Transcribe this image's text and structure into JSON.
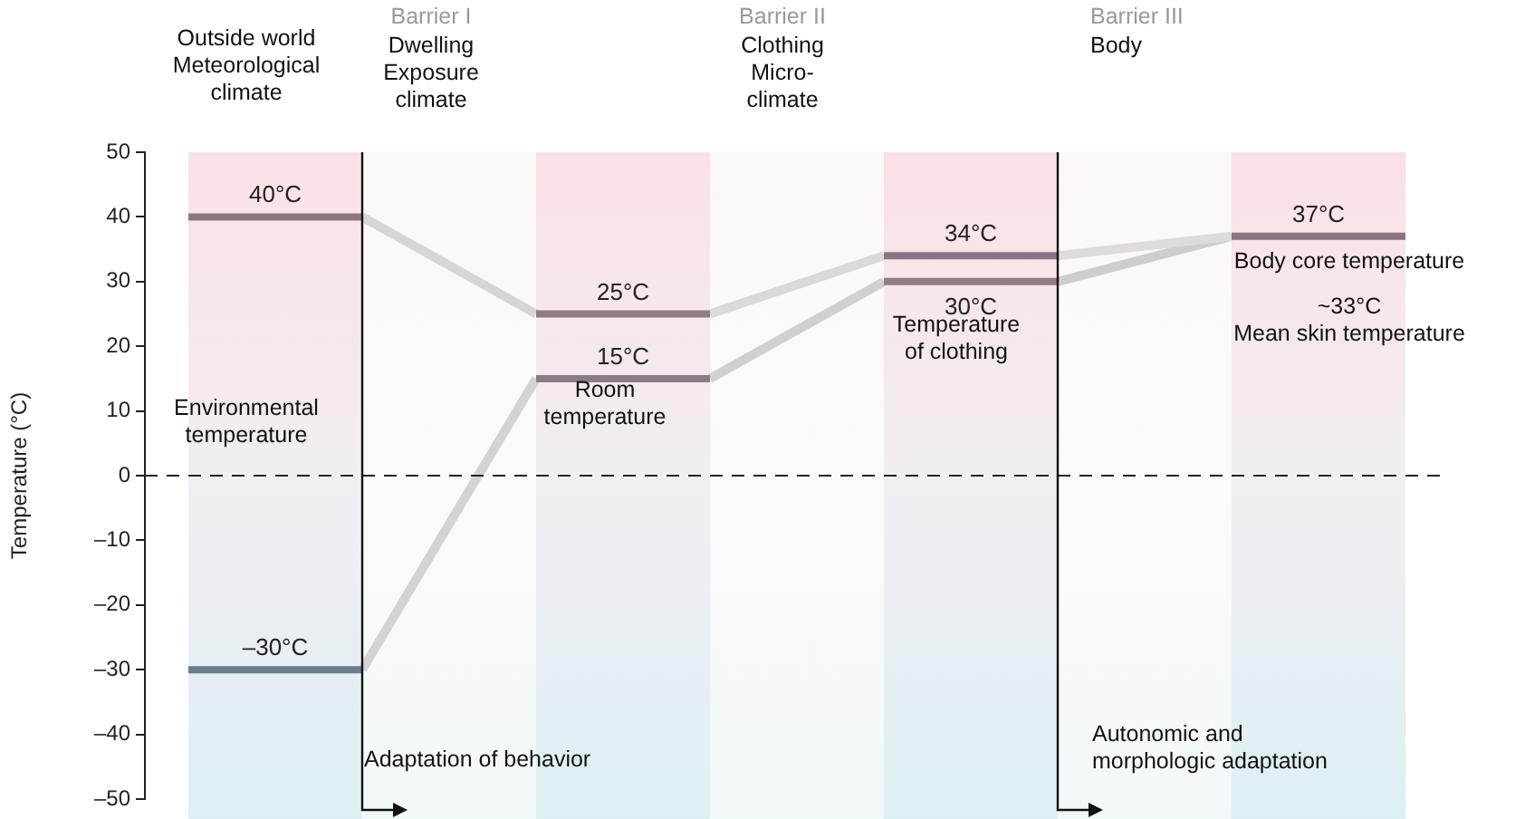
{
  "chart_data": {
    "type": "line",
    "ylabel": "Temperature (°C)",
    "categories": [
      null,
      null,
      null,
      null,
      null,
      null,
      null,
      null,
      null,
      null,
      null,
      null,
      null,
      null,
      null
    ],
    "series": [
      {
        "color": "#d6d6d6",
        "values": [
          null,
          null,
          40,
          null,
          25,
          null,
          null,
          null,
          null,
          null,
          null,
          null,
          null,
          null,
          null
        ]
      },
      {
        "color": "#d3d3d3",
        "values": [
          null,
          null,
          -30,
          null,
          15,
          null,
          null,
          null,
          null,
          null,
          null,
          null,
          null,
          null,
          null
        ]
      },
      {
        "color": "#d9d9d9",
        "values": [
          null,
          null,
          null,
          null,
          null,
          null,
          25,
          null,
          34,
          null,
          null,
          null,
          null,
          null,
          null
        ]
      },
      {
        "color": "#d0d0d0",
        "values": [
          null,
          null,
          null,
          null,
          null,
          null,
          15,
          null,
          30,
          null,
          null,
          null,
          null,
          null,
          null
        ]
      },
      {
        "color": "#dcdcdc",
        "values": [
          null,
          null,
          null,
          null,
          null,
          null,
          null,
          null,
          null,
          null,
          34,
          null,
          37,
          null,
          null
        ]
      },
      {
        "color": "#cdcdcd",
        "values": [
          null,
          null,
          null,
          null,
          null,
          null,
          null,
          null,
          null,
          null,
          30,
          null,
          37,
          null,
          null
        ]
      },
      {
        "color": "#8c7884",
        "values": [
          40,
          40,
          40,
          null,
          null,
          null,
          null,
          null,
          null,
          null,
          null,
          null,
          null,
          null,
          null
        ],
        "value_labels": [
          null,
          "40°C",
          null,
          null,
          null,
          null,
          null,
          null,
          null,
          null,
          null,
          null,
          null,
          null,
          null
        ]
      },
      {
        "color": "#6c7c8c",
        "values": [
          -30,
          -30,
          -30,
          null,
          null,
          null,
          null,
          null,
          null,
          null,
          null,
          null,
          null,
          null,
          null
        ],
        "value_labels": [
          null,
          "–30°C",
          null,
          null,
          null,
          null,
          null,
          null,
          null,
          null,
          null,
          null,
          null,
          null,
          null
        ]
      },
      {
        "color": "#907a86",
        "values": [
          null,
          null,
          null,
          null,
          25,
          25,
          25,
          null,
          null,
          null,
          null,
          null,
          null,
          null,
          null
        ],
        "value_labels": [
          null,
          null,
          null,
          null,
          null,
          "25°C",
          null,
          null,
          null,
          null,
          null,
          null,
          null,
          null,
          null
        ]
      },
      {
        "color": "#867c8a",
        "values": [
          null,
          null,
          null,
          null,
          15,
          15,
          15,
          null,
          null,
          null,
          null,
          null,
          null,
          null,
          null
        ],
        "value_labels": [
          null,
          null,
          null,
          null,
          null,
          "15°C",
          null,
          null,
          null,
          null,
          null,
          null,
          null,
          null,
          null
        ]
      },
      {
        "color": "#8a7682",
        "values": [
          null,
          null,
          null,
          null,
          null,
          null,
          null,
          null,
          34,
          34,
          34,
          null,
          null,
          null,
          null
        ],
        "value_labels": [
          null,
          null,
          null,
          null,
          null,
          null,
          null,
          null,
          null,
          "34°C",
          null,
          null,
          null,
          null,
          null
        ]
      },
      {
        "color": "#927c88",
        "values": [
          null,
          null,
          null,
          null,
          null,
          null,
          null,
          null,
          30,
          30,
          30,
          null,
          null,
          null,
          null
        ],
        "value_labels": [
          null,
          null,
          null,
          null,
          null,
          null,
          null,
          null,
          null,
          "30°C",
          null,
          null,
          null,
          null,
          null
        ]
      },
      {
        "color": "#887480",
        "values": [
          null,
          null,
          null,
          null,
          null,
          null,
          null,
          null,
          null,
          null,
          null,
          null,
          37,
          37,
          37
        ],
        "value_labels": [
          null,
          null,
          null,
          null,
          null,
          null,
          null,
          null,
          null,
          null,
          null,
          null,
          null,
          "37°C",
          null
        ]
      }
    ],
    "ylim": [
      -50,
      50
    ],
    "yticks": [
      {
        "value": -50,
        "label": "–50"
      },
      {
        "value": -40,
        "label": "–40"
      },
      {
        "value": -30,
        "label": "–30"
      },
      {
        "value": -20,
        "label": "–20"
      },
      {
        "value": -10,
        "label": "–10"
      },
      0,
      10,
      20,
      30,
      40,
      50
    ],
    "tick_labels": "y",
    "grid": false,
    "legend": false,
    "marker": "none",
    "line_style": "solid",
    "ref_lines": [
      {
        "axis": "y",
        "value": 0,
        "line_style": "dashed",
        "color": "#222222"
      }
    ],
    "annotations": [
      "Outside world\nMeteorological\nclimate",
      "Barrier I",
      "Dwelling\nExposure\nclimate",
      "Barrier II",
      "Clothing\nMicro-\nclimate",
      "Barrier III",
      "Body",
      "Environmental\ntemperature",
      "Room\ntemperature",
      "Temperature\nof clothing",
      "Body core temperature",
      "~33°C\nMean skin temperature",
      "Adaptation of behavior",
      "Autonomic and\nmorphologic adaptation"
    ]
  }
}
